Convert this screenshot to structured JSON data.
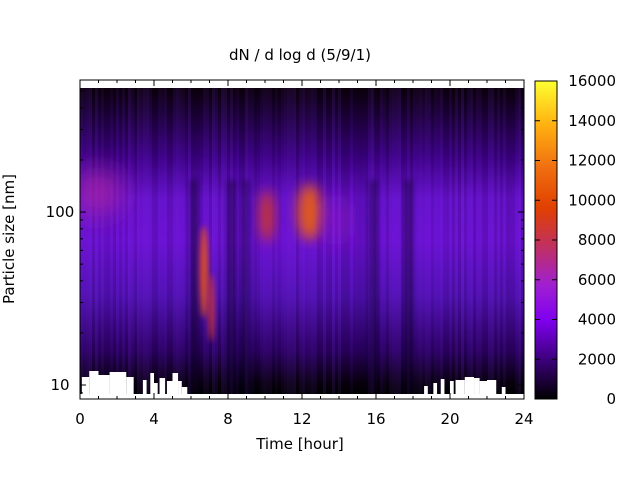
{
  "chart_data": {
    "type": "heatmap",
    "title": "dN / d log d (5/9/1)",
    "xlabel": "Time [hour]",
    "ylabel": "Particle size [nm]",
    "xlim": [
      0,
      24
    ],
    "ylim": [
      8.3,
      580
    ],
    "y_scale": "log",
    "x_ticks": [
      "0",
      "4",
      "8",
      "12",
      "16",
      "20",
      "24"
    ],
    "x_tick_values": [
      0,
      4,
      8,
      12,
      16,
      20,
      24
    ],
    "y_ticks": [
      "10",
      "100"
    ],
    "y_tick_values": [
      10,
      100
    ],
    "colorbar": {
      "range": [
        0,
        16000
      ],
      "ticks": [
        "0",
        "2000",
        "4000",
        "6000",
        "8000",
        "10000",
        "12000",
        "14000",
        "16000"
      ],
      "tick_values": [
        0,
        2000,
        4000,
        6000,
        8000,
        10000,
        12000,
        14000,
        16000
      ],
      "colormap": [
        "#000000",
        "#3a0078",
        "#8000f0",
        "#a020d0",
        "#c03060",
        "#e04000",
        "#f07010",
        "#ffb010",
        "#ffff30"
      ]
    },
    "grid": false,
    "features": [
      {
        "x": 1,
        "y": 130,
        "value": 6500
      },
      {
        "x": 6.7,
        "y": 45,
        "value": 10500
      },
      {
        "x": 7.1,
        "y": 28,
        "value": 8500
      },
      {
        "x": 10.1,
        "y": 95,
        "value": 9000
      },
      {
        "x": 12.4,
        "y": 100,
        "value": 11000
      },
      {
        "x": 13.8,
        "y": 90,
        "value": 6000
      }
    ]
  }
}
